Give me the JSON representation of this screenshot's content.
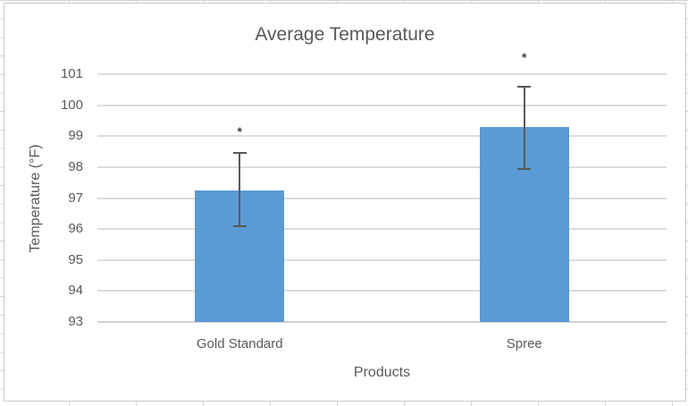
{
  "chart_data": {
    "type": "bar",
    "title": "Average Temperature",
    "xlabel": "Products",
    "ylabel": "Temperature (°F)",
    "categories": [
      "Gold Standard",
      "Spree"
    ],
    "values": [
      97.25,
      99.3
    ],
    "error_bars": [
      {
        "low": 96.1,
        "high": 98.45
      },
      {
        "low": 97.95,
        "high": 100.6
      }
    ],
    "annotations": [
      {
        "text": "*",
        "value": 99.15
      },
      {
        "text": "*",
        "value": 101.55
      }
    ],
    "ylim": [
      93,
      101
    ],
    "yticks": [
      93,
      94,
      95,
      96,
      97,
      98,
      99,
      100,
      101
    ],
    "grid": true,
    "legend": "none",
    "colors": {
      "bar": "#5B9BD5",
      "error_bar": "#595959",
      "annotation": "#404040",
      "gridline": "#DCDCDC",
      "axis_line": "#D0D0D0",
      "text": "#595959"
    }
  }
}
